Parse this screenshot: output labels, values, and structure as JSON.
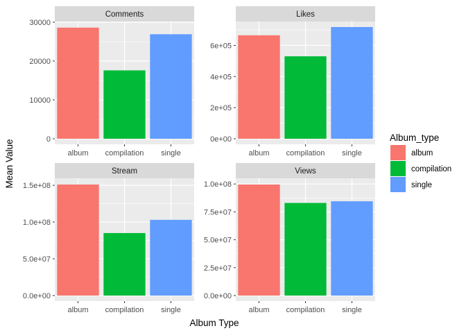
{
  "chart_data": {
    "type": "bar",
    "facets": [
      {
        "title": "Comments",
        "categories": [
          "album",
          "compilation",
          "single"
        ],
        "values": [
          28600,
          17600,
          26900
        ],
        "ylim": [
          0,
          30000
        ],
        "yticks": [
          0,
          10000,
          20000,
          30000
        ],
        "ytick_labels": [
          "0",
          "10000",
          "20000",
          "30000"
        ]
      },
      {
        "title": "Likes",
        "categories": [
          "album",
          "compilation",
          "single"
        ],
        "values": [
          665000,
          530000,
          718000
        ],
        "ylim": [
          0,
          718000
        ],
        "yticks": [
          0,
          200000,
          400000,
          600000
        ],
        "ytick_labels": [
          "0e+00",
          "2e+05",
          "4e+05",
          "6e+05"
        ]
      },
      {
        "title": "Stream",
        "categories": [
          "album",
          "compilation",
          "single"
        ],
        "values": [
          151000000,
          85000000,
          103000000
        ],
        "ylim": [
          0,
          151000000
        ],
        "yticks": [
          0,
          50000000,
          100000000,
          150000000
        ],
        "ytick_labels": [
          "0.0e+00",
          "5.0e+07",
          "1.0e+08",
          "1.5e+08"
        ]
      },
      {
        "title": "Views",
        "categories": [
          "album",
          "compilation",
          "single"
        ],
        "values": [
          99500000,
          83000000,
          84500000
        ],
        "ylim": [
          0,
          99500000
        ],
        "yticks": [
          0,
          25000000,
          50000000,
          75000000,
          100000000
        ],
        "ytick_labels": [
          "0.0e+00",
          "2.5e+07",
          "5.0e+07",
          "7.5e+07",
          "1.0e+08"
        ]
      }
    ],
    "xlabel": "Album Type",
    "ylabel": "Mean Value",
    "legend": {
      "title": "Album_type",
      "position": "right",
      "entries": [
        "album",
        "compilation",
        "single"
      ]
    },
    "colors": {
      "album": "#F8766D",
      "compilation": "#00BA38",
      "single": "#619CFF"
    },
    "panel_background": "#EBEBEB",
    "strip_background": "#D9D9D9",
    "grid": true,
    "facet_scales": "free_y"
  }
}
